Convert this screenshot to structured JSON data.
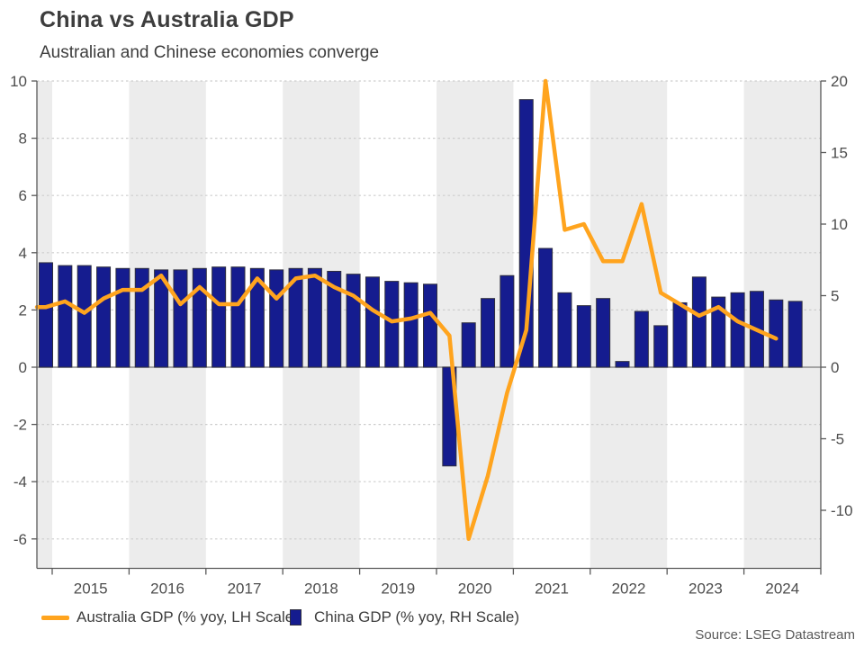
{
  "header": {
    "title": "China vs Australia GDP",
    "subtitle": "Australian and Chinese economies converge"
  },
  "source": "Source: LSEG Datastream",
  "legend": [
    {
      "label": "Australia GDP (% yoy, LH Scale)",
      "swatch": "line",
      "color": "#FFA41E"
    },
    {
      "label": "China GDP (% yoy, RH Scale)",
      "swatch": "square",
      "color": "#151C8F"
    }
  ],
  "colors": {
    "australia_line": "#FFA41E",
    "china_bar": "#151C8F",
    "china_bar_outline": "#2E2E3E",
    "year_band": "#ECECEC",
    "gridline": "#CDCDCD",
    "zero_line": "#8C8C8C",
    "axis_line": "#595959",
    "tick_text": "#4D4D4D"
  },
  "chart_data": {
    "type": "combo (bar + line, dual axis)",
    "x": [
      "2014 Q4",
      "2015 Q1",
      "2015 Q2",
      "2015 Q3",
      "2015 Q4",
      "2016 Q1",
      "2016 Q2",
      "2016 Q3",
      "2016 Q4",
      "2017 Q1",
      "2017 Q2",
      "2017 Q3",
      "2017 Q4",
      "2018 Q1",
      "2018 Q2",
      "2018 Q3",
      "2018 Q4",
      "2019 Q1",
      "2019 Q2",
      "2019 Q3",
      "2019 Q4",
      "2020 Q1",
      "2020 Q2",
      "2020 Q3",
      "2020 Q4",
      "2021 Q1",
      "2021 Q2",
      "2021 Q3",
      "2021 Q4",
      "2022 Q1",
      "2022 Q2",
      "2022 Q3",
      "2022 Q4",
      "2023 Q1",
      "2023 Q2",
      "2023 Q3",
      "2023 Q4",
      "2024 Q1",
      "2024 Q2",
      "2024 Q3"
    ],
    "x_tick_labels": [
      "2015",
      "2016",
      "2017",
      "2018",
      "2019",
      "2020",
      "2021",
      "2022",
      "2023",
      "2024"
    ],
    "series": [
      {
        "name": "China GDP (% yoy, RH Scale)",
        "type": "bar",
        "axis": "right",
        "values": [
          7.3,
          7.1,
          7.1,
          7.0,
          6.9,
          6.9,
          6.8,
          6.8,
          6.9,
          7.0,
          7.0,
          6.9,
          6.8,
          6.9,
          6.9,
          6.7,
          6.5,
          6.3,
          6.0,
          5.9,
          5.8,
          -6.9,
          3.1,
          4.8,
          6.4,
          18.7,
          8.3,
          5.2,
          4.3,
          4.8,
          0.4,
          3.9,
          2.9,
          4.5,
          6.3,
          4.9,
          5.2,
          5.3,
          4.7,
          4.6
        ]
      },
      {
        "name": "Australia GDP (% yoy, LH Scale)",
        "type": "line",
        "axis": "left",
        "values": [
          2.1,
          2.3,
          1.9,
          2.4,
          2.7,
          2.7,
          3.2,
          2.2,
          2.8,
          2.2,
          2.2,
          3.1,
          2.4,
          3.1,
          3.2,
          2.8,
          2.5,
          2.0,
          1.6,
          1.7,
          1.9,
          1.1,
          -6.0,
          -3.8,
          -0.9,
          1.3,
          10.0,
          4.8,
          5.0,
          3.7,
          3.7,
          5.7,
          2.6,
          2.2,
          1.8,
          2.1,
          1.6,
          1.3,
          1.0
        ],
        "note": "line ends at 2024 Q2"
      }
    ],
    "left_axis": {
      "ticks": [
        10,
        8,
        6,
        4,
        2,
        0,
        -2,
        -4,
        -6
      ],
      "range": [
        -7.05,
        10
      ]
    },
    "right_axis": {
      "ticks": [
        20,
        15,
        10,
        5,
        0,
        -5,
        -10
      ],
      "range": [
        -14.1,
        20
      ]
    },
    "grid": "horizontal dotted lines at left-axis ticks, solid line at zero",
    "background_bands": "alternating vertical year shading, even years shaded",
    "legend_position": "bottom"
  }
}
